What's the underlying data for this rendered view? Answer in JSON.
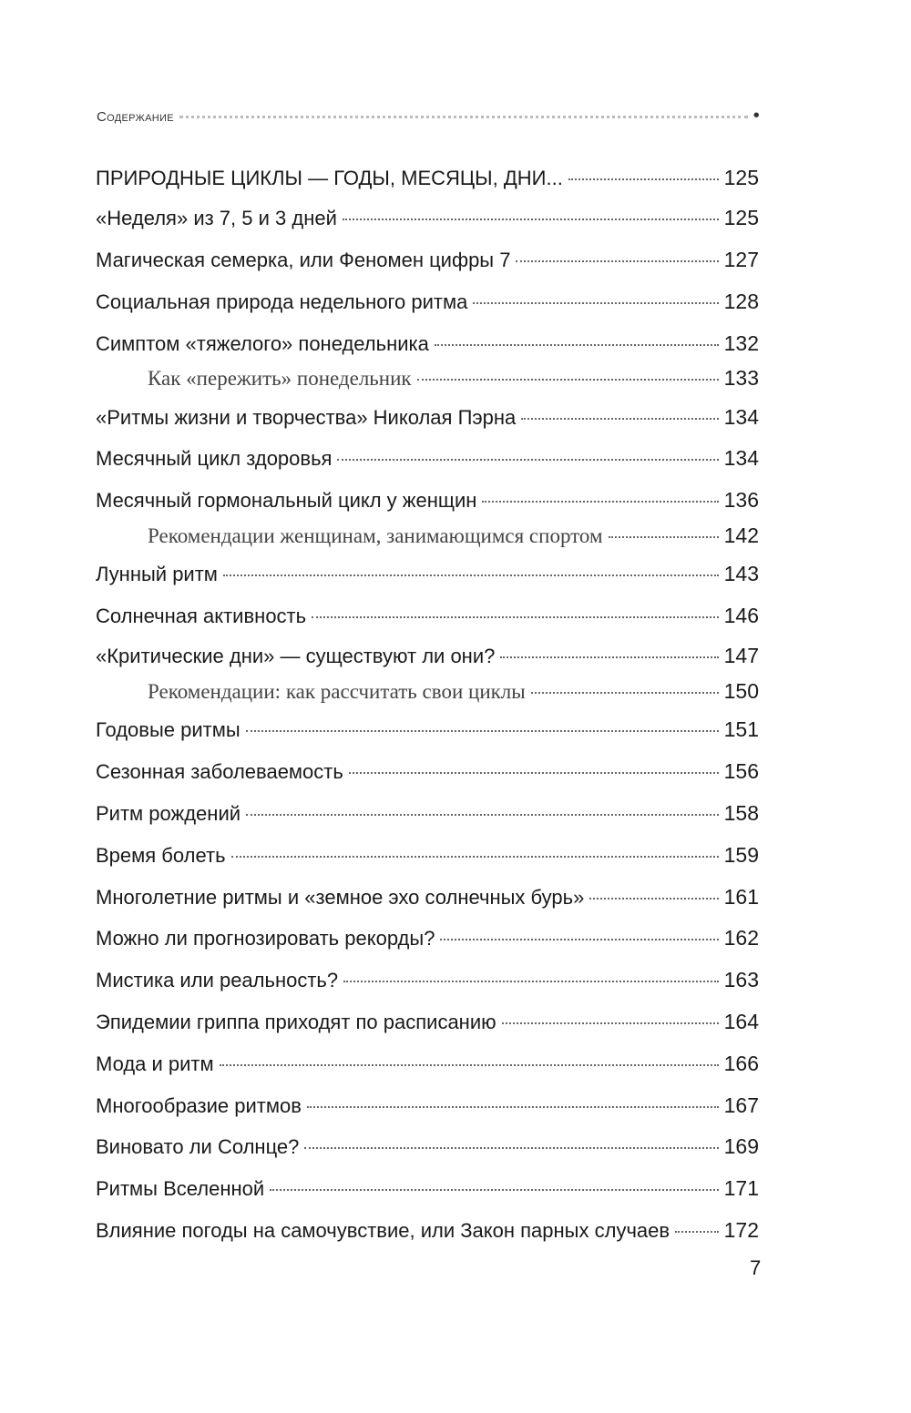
{
  "header": {
    "title": "Содержание"
  },
  "entries": [
    {
      "title": "ПРИРОДНЫЕ ЦИКЛЫ — ГОДЫ, МЕСЯЦЫ, ДНИ...",
      "page": "125",
      "level": "top"
    },
    {
      "title": "«Неделя» из 7, 5 и 3 дней",
      "page": "125",
      "level": "main"
    },
    {
      "title": "Магическая семерка, или Феномен цифры 7",
      "page": "127",
      "level": "main"
    },
    {
      "title": "Социальная природа недельного ритма",
      "page": "128",
      "level": "main"
    },
    {
      "title": "Симптом «тяжелого» понедельника",
      "page": "132",
      "level": "main"
    },
    {
      "title": "Как «пережить» понедельник",
      "page": "133",
      "level": "sub"
    },
    {
      "title": "«Ритмы жизни и творчества» Николая Пэрна",
      "page": "134",
      "level": "main"
    },
    {
      "title": "Месячный цикл здоровья",
      "page": "134",
      "level": "main"
    },
    {
      "title": "Месячный гормональный цикл у женщин",
      "page": "136",
      "level": "main"
    },
    {
      "title": "Рекомендации женщинам, занимающимся спортом",
      "page": "142",
      "level": "sub"
    },
    {
      "title": "Лунный ритм",
      "page": "143",
      "level": "main"
    },
    {
      "title": "Солнечная активность",
      "page": "146",
      "level": "main"
    },
    {
      "title": "«Критические дни» — существуют ли они?",
      "page": "147",
      "level": "main"
    },
    {
      "title": "Рекомендации: как рассчитать свои циклы",
      "page": "150",
      "level": "sub"
    },
    {
      "title": "Годовые ритмы",
      "page": "151",
      "level": "main"
    },
    {
      "title": "Сезонная заболеваемость",
      "page": "156",
      "level": "main"
    },
    {
      "title": "Ритм рождений",
      "page": "158",
      "level": "main"
    },
    {
      "title": "Время болеть",
      "page": "159",
      "level": "main"
    },
    {
      "title": "Многолетние ритмы и «земное эхо солнечных бурь»",
      "page": "161",
      "level": "main"
    },
    {
      "title": "Можно ли прогнозировать рекорды?",
      "page": "162",
      "level": "main"
    },
    {
      "title": "Мистика или реальность?",
      "page": "163",
      "level": "main"
    },
    {
      "title": "Эпидемии гриппа приходят по расписанию",
      "page": "164",
      "level": "main"
    },
    {
      "title": "Мода и ритм",
      "page": "166",
      "level": "main"
    },
    {
      "title": "Многообразие ритмов",
      "page": "167",
      "level": "main"
    },
    {
      "title": "Виновато ли Солнце?",
      "page": "169",
      "level": "main"
    },
    {
      "title": "Ритмы Вселенной",
      "page": "171",
      "level": "main"
    },
    {
      "title": "Влияние погоды на самочувствие, или Закон парных случаев",
      "page": "172",
      "level": "main"
    }
  ],
  "folio": "7"
}
